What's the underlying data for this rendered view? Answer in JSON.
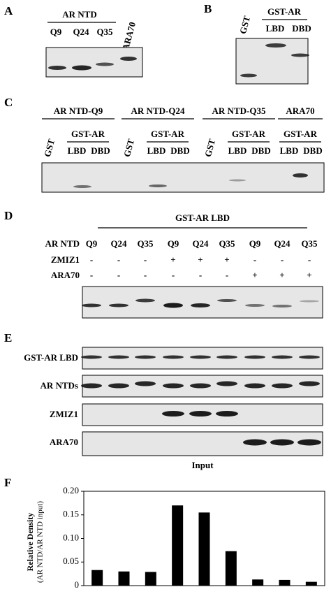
{
  "panels": {
    "a": {
      "label": "A",
      "group": "AR NTD",
      "lanes": [
        "Q9",
        "Q24",
        "Q35"
      ],
      "extra_lane": "ARA70"
    },
    "b": {
      "label": "B",
      "lane_gst": "GST",
      "group": "GST-AR",
      "lanes": [
        "LBD",
        "DBD"
      ]
    },
    "c": {
      "label": "C",
      "groups": [
        {
          "title": "AR NTD-Q9",
          "gst": "GST",
          "sub": "GST-AR",
          "lanes": [
            "LBD",
            "DBD"
          ]
        },
        {
          "title": "AR NTD-Q24",
          "gst": "GST",
          "sub": "GST-AR",
          "lanes": [
            "LBD",
            "DBD"
          ]
        },
        {
          "title": "AR NTD-Q35",
          "gst": "GST",
          "sub": "GST-AR",
          "lanes": [
            "LBD",
            "DBD"
          ]
        },
        {
          "title": "ARA70",
          "sub": "GST-AR",
          "lanes": [
            "LBD",
            "DBD"
          ]
        }
      ]
    },
    "d": {
      "label": "D",
      "group": "GST-AR LBD",
      "rows": [
        {
          "name": "AR NTD",
          "cells": [
            "Q9",
            "Q24",
            "Q35",
            "Q9",
            "Q24",
            "Q35",
            "Q9",
            "Q24",
            "Q35"
          ]
        },
        {
          "name": "ZMIZ1",
          "cells": [
            "-",
            "-",
            "-",
            "+",
            "+",
            "+",
            "-",
            "-",
            "-"
          ]
        },
        {
          "name": "ARA70",
          "cells": [
            "-",
            "-",
            "-",
            "-",
            "-",
            "-",
            "+",
            "+",
            "+"
          ]
        }
      ]
    },
    "e": {
      "label": "E",
      "strips": [
        "GST-AR LBD",
        "AR NTDs",
        "ZMIZ1",
        "ARA70"
      ],
      "caption": "Input"
    },
    "f": {
      "label": "F"
    }
  },
  "chart_data": {
    "type": "bar",
    "y_label": "Relative Density",
    "y_label_sub": "(AR NTD/AR NTD input)",
    "values": [
      0.033,
      0.03,
      0.029,
      0.17,
      0.155,
      0.073,
      0.013,
      0.012,
      0.008
    ],
    "color": "#000000",
    "ylim": [
      0,
      0.2
    ],
    "yticks": [
      0,
      0.05,
      {
        "value": 0.1,
        "label": "0.10"
      },
      0.15,
      {
        "value": 0.2,
        "label": "0.20"
      }
    ]
  }
}
